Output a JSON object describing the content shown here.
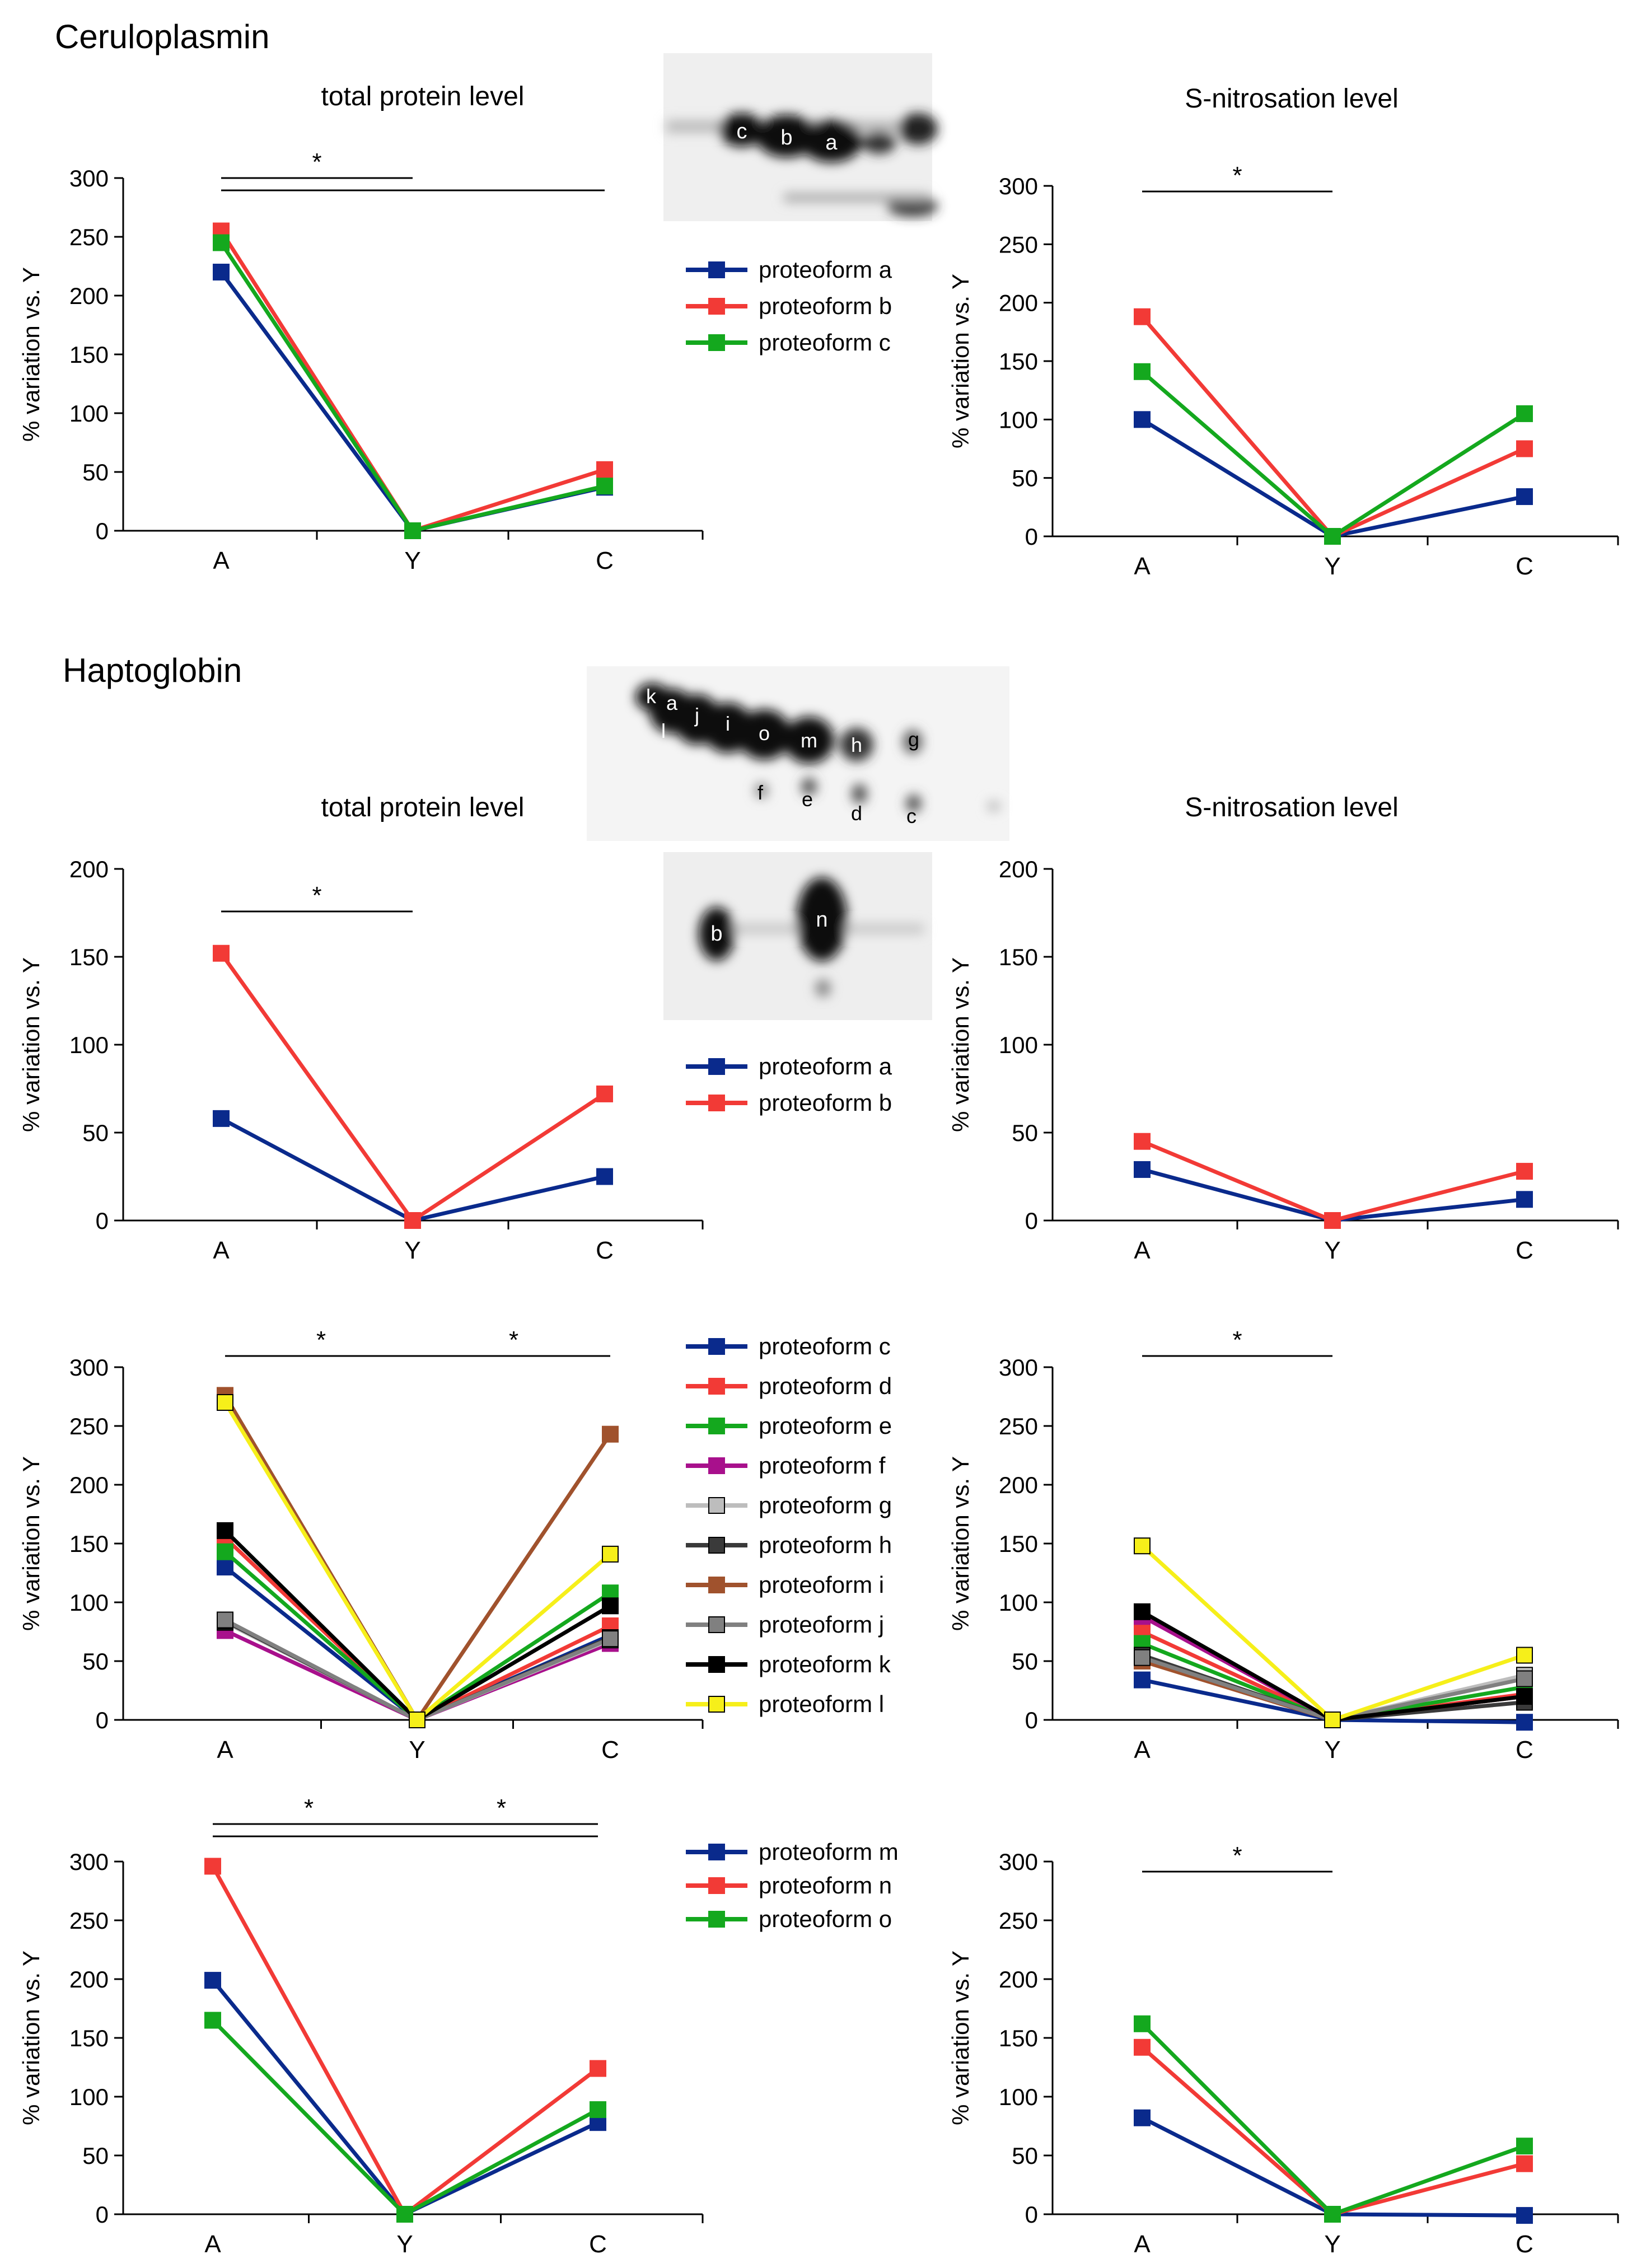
{
  "sections": {
    "ceruloplasmin": "Ceruloplasmin",
    "haptoglobin": "Haptoglobin"
  },
  "gel_labels": {
    "ceruloplasmin": [
      "c",
      "b",
      "a"
    ],
    "haptoglobin_top": [
      "k",
      "a",
      "l",
      "j",
      "i",
      "o",
      "m",
      "h",
      "g",
      "f",
      "e",
      "d",
      "c"
    ],
    "haptoglobin_bottom": [
      "b",
      "n"
    ]
  },
  "legends": [
    {
      "items": [
        {
          "label": "proteoform a",
          "color": "#0a2a8c",
          "fill": "#0a2a8c"
        },
        {
          "label": "proteoform b",
          "color": "#f23a36",
          "fill": "#f23a36"
        },
        {
          "label": "proteoform c",
          "color": "#14a81e",
          "fill": "#14a81e"
        }
      ]
    },
    {
      "items": [
        {
          "label": "proteoform a",
          "color": "#0a2a8c",
          "fill": "#0a2a8c"
        },
        {
          "label": "proteoform b",
          "color": "#f23a36",
          "fill": "#f23a36"
        }
      ]
    },
    {
      "items": [
        {
          "label": "proteoform c",
          "color": "#0a2a8c",
          "fill": "#0a2a8c"
        },
        {
          "label": "proteoform d",
          "color": "#f23a36",
          "fill": "#f23a36"
        },
        {
          "label": "proteoform e",
          "color": "#14a81e",
          "fill": "#14a81e"
        },
        {
          "label": "proteoform f",
          "color": "#a8108c",
          "fill": "#a8108c"
        },
        {
          "label": "proteoform g",
          "color": "#bdbdbd",
          "fill": "#bdbdbd"
        },
        {
          "label": "proteoform h",
          "color": "#3a3a3a",
          "fill": "#3a3a3a"
        },
        {
          "label": "proteoform i",
          "color": "#a0522d",
          "fill": "#a0522d"
        },
        {
          "label": "proteoform j",
          "color": "#808080",
          "fill": "#808080"
        },
        {
          "label": "proteoform k",
          "color": "#000000",
          "fill": "#000000"
        },
        {
          "label": "proteoform l",
          "color": "#f6ef1a",
          "fill": "#f6ef1a"
        }
      ]
    },
    {
      "items": [
        {
          "label": "proteoform m",
          "color": "#0a2a8c",
          "fill": "#0a2a8c"
        },
        {
          "label": "proteoform n",
          "color": "#f23a36",
          "fill": "#f23a36"
        },
        {
          "label": "proteoform o",
          "color": "#14a81e",
          "fill": "#14a81e"
        }
      ]
    }
  ],
  "chart_data": [
    {
      "type": "line",
      "title": "total protein level",
      "ylabel": "% variation vs. Y",
      "categories": [
        "A",
        "Y",
        "C"
      ],
      "ylim": [
        0,
        300
      ],
      "yticks": [
        0,
        50,
        100,
        150,
        200,
        250,
        300
      ],
      "significance": [
        {
          "from": "A",
          "to": "Y",
          "label": "*"
        },
        {
          "from": "A",
          "to": "C",
          "label": ""
        }
      ],
      "series": [
        {
          "name": "proteoform a",
          "color": "#0a2a8c",
          "values": [
            220,
            0,
            37
          ]
        },
        {
          "name": "proteoform b",
          "color": "#f23a36",
          "values": [
            255,
            0,
            52
          ]
        },
        {
          "name": "proteoform c",
          "color": "#14a81e",
          "values": [
            245,
            0,
            38
          ]
        }
      ]
    },
    {
      "type": "line",
      "title": "S-nitrosation level",
      "ylabel": "% variation vs. Y",
      "categories": [
        "A",
        "Y",
        "C"
      ],
      "ylim": [
        0,
        300
      ],
      "yticks": [
        0,
        50,
        100,
        150,
        200,
        250,
        300
      ],
      "significance": [
        {
          "from": "A",
          "to": "Y",
          "label": "*"
        }
      ],
      "series": [
        {
          "name": "proteoform a",
          "color": "#0a2a8c",
          "values": [
            100,
            0,
            34
          ]
        },
        {
          "name": "proteoform b",
          "color": "#f23a36",
          "values": [
            188,
            0,
            75
          ]
        },
        {
          "name": "proteoform c",
          "color": "#14a81e",
          "values": [
            141,
            0,
            105
          ]
        }
      ]
    },
    {
      "type": "line",
      "title": "total protein level",
      "ylabel": "% variation vs. Y",
      "categories": [
        "A",
        "Y",
        "C"
      ],
      "ylim": [
        0,
        200
      ],
      "yticks": [
        0,
        50,
        100,
        150,
        200
      ],
      "significance": [
        {
          "from": "A",
          "to": "Y",
          "label": "*"
        }
      ],
      "series": [
        {
          "name": "proteoform a",
          "color": "#0a2a8c",
          "values": [
            58,
            0,
            25
          ]
        },
        {
          "name": "proteoform b",
          "color": "#f23a36",
          "values": [
            152,
            0,
            72
          ]
        }
      ]
    },
    {
      "type": "line",
      "title": "S-nitrosation level",
      "ylabel": "% variation vs. Y",
      "categories": [
        "A",
        "Y",
        "C"
      ],
      "ylim": [
        0,
        200
      ],
      "yticks": [
        0,
        50,
        100,
        150,
        200
      ],
      "significance": [],
      "series": [
        {
          "name": "proteoform a",
          "color": "#0a2a8c",
          "values": [
            29,
            0,
            12
          ]
        },
        {
          "name": "proteoform b",
          "color": "#f23a36",
          "values": [
            45,
            0,
            28
          ]
        }
      ]
    },
    {
      "type": "line",
      "title": "",
      "ylabel": "% variation vs. Y",
      "categories": [
        "A",
        "Y",
        "C"
      ],
      "ylim": [
        0,
        300
      ],
      "yticks": [
        0,
        50,
        100,
        150,
        200,
        250,
        300
      ],
      "significance": [
        {
          "from": "A",
          "to": "Y",
          "label": "*"
        },
        {
          "from": "Y",
          "to": "C",
          "label": "*"
        }
      ],
      "series": [
        {
          "name": "proteoform c",
          "color": "#0a2a8c",
          "values": [
            130,
            0,
            72
          ]
        },
        {
          "name": "proteoform d",
          "color": "#f23a36",
          "values": [
            155,
            0,
            80
          ]
        },
        {
          "name": "proteoform e",
          "color": "#14a81e",
          "values": [
            143,
            0,
            108
          ]
        },
        {
          "name": "proteoform f",
          "color": "#a8108c",
          "values": [
            76,
            0,
            65
          ]
        },
        {
          "name": "proteoform g",
          "color": "#bdbdbd",
          "values": [
            83,
            0,
            68
          ]
        },
        {
          "name": "proteoform h",
          "color": "#3a3a3a",
          "values": [
            84,
            0,
            70
          ]
        },
        {
          "name": "proteoform i",
          "color": "#a0522d",
          "values": [
            276,
            0,
            243
          ]
        },
        {
          "name": "proteoform j",
          "color": "#808080",
          "values": [
            85,
            0,
            69
          ]
        },
        {
          "name": "proteoform k",
          "color": "#000000",
          "values": [
            161,
            0,
            97
          ]
        },
        {
          "name": "proteoform l",
          "color": "#f6ef1a",
          "values": [
            270,
            0,
            141
          ]
        }
      ]
    },
    {
      "type": "line",
      "title": "",
      "ylabel": "% variation vs. Y",
      "categories": [
        "A",
        "Y",
        "C"
      ],
      "ylim": [
        0,
        300
      ],
      "yticks": [
        0,
        50,
        100,
        150,
        200,
        250,
        300
      ],
      "significance": [
        {
          "from": "A",
          "to": "Y",
          "label": "*"
        }
      ],
      "series": [
        {
          "name": "proteoform c",
          "color": "#0a2a8c",
          "values": [
            34,
            0,
            -2
          ]
        },
        {
          "name": "proteoform d",
          "color": "#f23a36",
          "values": [
            75,
            0,
            22
          ]
        },
        {
          "name": "proteoform e",
          "color": "#14a81e",
          "values": [
            65,
            0,
            28
          ]
        },
        {
          "name": "proteoform f",
          "color": "#a8108c",
          "values": [
            88,
            0,
            20
          ]
        },
        {
          "name": "proteoform g",
          "color": "#bdbdbd",
          "values": [
            52,
            0,
            38
          ]
        },
        {
          "name": "proteoform h",
          "color": "#3a3a3a",
          "values": [
            55,
            0,
            15
          ]
        },
        {
          "name": "proteoform i",
          "color": "#a0522d",
          "values": [
            50,
            0,
            20
          ]
        },
        {
          "name": "proteoform j",
          "color": "#808080",
          "values": [
            53,
            0,
            35
          ]
        },
        {
          "name": "proteoform k",
          "color": "#000000",
          "values": [
            92,
            0,
            20
          ]
        },
        {
          "name": "proteoform l",
          "color": "#f6ef1a",
          "values": [
            148,
            0,
            55
          ]
        }
      ]
    },
    {
      "type": "line",
      "title": "",
      "ylabel": "% variation vs. Y",
      "categories": [
        "A",
        "Y",
        "C"
      ],
      "ylim": [
        0,
        300
      ],
      "yticks": [
        0,
        50,
        100,
        150,
        200,
        250,
        300
      ],
      "significance": [
        {
          "from": "A",
          "to": "Y",
          "label": "*"
        },
        {
          "from": "Y",
          "to": "C",
          "label": "*"
        },
        {
          "from": "A",
          "to": "C",
          "label": ""
        }
      ],
      "series": [
        {
          "name": "proteoform m",
          "color": "#0a2a8c",
          "values": [
            199,
            0,
            78
          ]
        },
        {
          "name": "proteoform n",
          "color": "#f23a36",
          "values": [
            296,
            0,
            124
          ]
        },
        {
          "name": "proteoform o",
          "color": "#14a81e",
          "values": [
            165,
            0,
            89
          ]
        }
      ]
    },
    {
      "type": "line",
      "title": "",
      "ylabel": "% variation vs. Y",
      "categories": [
        "A",
        "Y",
        "C"
      ],
      "ylim": [
        0,
        300
      ],
      "yticks": [
        0,
        50,
        100,
        150,
        200,
        250,
        300
      ],
      "significance": [
        {
          "from": "A",
          "to": "Y",
          "label": "*"
        }
      ],
      "series": [
        {
          "name": "proteoform m",
          "color": "#0a2a8c",
          "values": [
            82,
            0,
            -1
          ]
        },
        {
          "name": "proteoform n",
          "color": "#f23a36",
          "values": [
            142,
            0,
            43
          ]
        },
        {
          "name": "proteoform o",
          "color": "#14a81e",
          "values": [
            162,
            0,
            58
          ]
        }
      ]
    }
  ]
}
